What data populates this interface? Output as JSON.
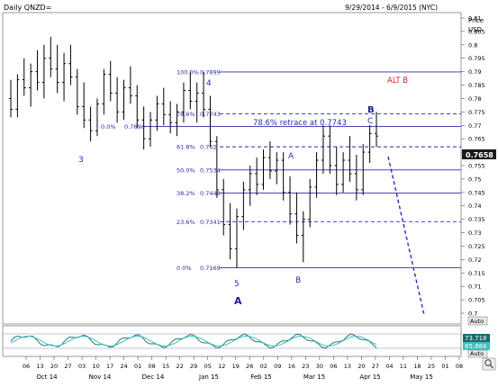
{
  "header": {
    "title": "Daily QNZD=",
    "range": "9/29/2014 - 6/9/2015 (NYC)"
  },
  "price_axis": {
    "title": "Price",
    "unit": "USD",
    "ticks": [
      "0.81",
      "0.805",
      "0.8",
      "0.795",
      "0.79",
      "0.785",
      "0.78",
      "0.775",
      "0.77",
      "0.765",
      "0.76",
      "0.755",
      "0.75",
      "0.745",
      "0.74",
      "0.735",
      "0.73",
      "0.725",
      "0.72",
      "0.715",
      "0.71",
      "0.705",
      "0.7"
    ],
    "last_price": "0.7658",
    "auto_label": "Auto"
  },
  "stochastic": {
    "value1": "73.718",
    "value2": "65.884",
    "auto_label": "Auto"
  },
  "date_axis": {
    "day_ticks": [
      "06",
      "13",
      "20",
      "27",
      "03",
      "10",
      "17",
      "24",
      "01",
      "08",
      "15",
      "22",
      "29",
      "05",
      "12",
      "19",
      "26",
      "02",
      "09",
      "16",
      "23",
      "30",
      "06",
      "13",
      "20",
      "27",
      "04",
      "11",
      "18",
      "25",
      "01",
      "08"
    ],
    "month_labels": [
      "Oct 14",
      "Nov 14",
      "Dec 14",
      "Jan 15",
      "Feb 15",
      "Mar 15",
      "Apr 15",
      "May 15"
    ]
  },
  "fib_levels": [
    {
      "pct": "100.0%",
      "price": "0.7899"
    },
    {
      "pct": "78.6%",
      "price": "0.7743"
    },
    {
      "pct": "61.8%",
      "price": "0.762"
    },
    {
      "pct": "50.0%",
      "price": "0.7534"
    },
    {
      "pct": "38.2%",
      "price": "0.7448"
    },
    {
      "pct": "23.6%",
      "price": "0.7341"
    },
    {
      "pct": "0.0%",
      "price": "0.7169"
    }
  ],
  "extra_level": {
    "pct": "0.0%",
    "price": "0.7696"
  },
  "annotations": {
    "retrace": "78.6% retrace at 0.7743",
    "alt_b": "ALT B",
    "wave_b_bold": "B",
    "wave_c": "C",
    "wave_a_small": "A",
    "wave_b_small": "B",
    "wave_4": "4",
    "wave_3": "3",
    "wave_5": "5",
    "wave_a_bold": "A"
  },
  "colors": {
    "candles": "#000000",
    "fib_lines": "#2b2bb5",
    "annotation_blue": "#2b2bb5",
    "alt_b_red": "#cc2222",
    "stoch_fast": "#2a7a7a",
    "stoch_slow": "#3fbfbf",
    "last_price_box": "#1a1a1a"
  },
  "chart_data": {
    "type": "ohlc",
    "title": "Daily QNZD=",
    "ylabel": "Price USD",
    "ylim": [
      0.7,
      0.812
    ],
    "x_unit": "trading day index (0 = 29 Sep 2014)",
    "bars": [
      {
        "x": 0,
        "o": 0.78,
        "h": 0.787,
        "l": 0.773,
        "c": 0.776
      },
      {
        "x": 2,
        "o": 0.776,
        "h": 0.789,
        "l": 0.773,
        "c": 0.787
      },
      {
        "x": 4,
        "o": 0.787,
        "h": 0.795,
        "l": 0.781,
        "c": 0.784
      },
      {
        "x": 6,
        "o": 0.784,
        "h": 0.793,
        "l": 0.777,
        "c": 0.79
      },
      {
        "x": 8,
        "o": 0.79,
        "h": 0.798,
        "l": 0.783,
        "c": 0.786
      },
      {
        "x": 10,
        "o": 0.786,
        "h": 0.8,
        "l": 0.78,
        "c": 0.795
      },
      {
        "x": 12,
        "o": 0.795,
        "h": 0.803,
        "l": 0.788,
        "c": 0.791
      },
      {
        "x": 14,
        "o": 0.791,
        "h": 0.8,
        "l": 0.782,
        "c": 0.786
      },
      {
        "x": 16,
        "o": 0.786,
        "h": 0.797,
        "l": 0.779,
        "c": 0.793
      },
      {
        "x": 18,
        "o": 0.793,
        "h": 0.8,
        "l": 0.785,
        "c": 0.788
      },
      {
        "x": 20,
        "o": 0.788,
        "h": 0.791,
        "l": 0.774,
        "c": 0.777
      },
      {
        "x": 22,
        "o": 0.777,
        "h": 0.786,
        "l": 0.769,
        "c": 0.772
      },
      {
        "x": 24,
        "o": 0.772,
        "h": 0.777,
        "l": 0.764,
        "c": 0.768
      },
      {
        "x": 26,
        "o": 0.768,
        "h": 0.78,
        "l": 0.766,
        "c": 0.778
      },
      {
        "x": 28,
        "o": 0.778,
        "h": 0.791,
        "l": 0.774,
        "c": 0.789
      },
      {
        "x": 30,
        "o": 0.789,
        "h": 0.794,
        "l": 0.779,
        "c": 0.782
      },
      {
        "x": 32,
        "o": 0.782,
        "h": 0.788,
        "l": 0.771,
        "c": 0.775
      },
      {
        "x": 34,
        "o": 0.775,
        "h": 0.787,
        "l": 0.772,
        "c": 0.784
      },
      {
        "x": 36,
        "o": 0.784,
        "h": 0.792,
        "l": 0.778,
        "c": 0.781
      },
      {
        "x": 38,
        "o": 0.781,
        "h": 0.785,
        "l": 0.769,
        "c": 0.772
      },
      {
        "x": 40,
        "o": 0.772,
        "h": 0.777,
        "l": 0.761,
        "c": 0.765
      },
      {
        "x": 42,
        "o": 0.765,
        "h": 0.775,
        "l": 0.762,
        "c": 0.772
      },
      {
        "x": 44,
        "o": 0.772,
        "h": 0.781,
        "l": 0.768,
        "c": 0.778
      },
      {
        "x": 46,
        "o": 0.778,
        "h": 0.784,
        "l": 0.77,
        "c": 0.774
      },
      {
        "x": 48,
        "o": 0.774,
        "h": 0.779,
        "l": 0.767,
        "c": 0.771
      },
      {
        "x": 50,
        "o": 0.771,
        "h": 0.778,
        "l": 0.766,
        "c": 0.775
      },
      {
        "x": 52,
        "o": 0.775,
        "h": 0.786,
        "l": 0.771,
        "c": 0.783
      },
      {
        "x": 54,
        "o": 0.783,
        "h": 0.79,
        "l": 0.776,
        "c": 0.779
      },
      {
        "x": 56,
        "o": 0.779,
        "h": 0.786,
        "l": 0.771,
        "c": 0.782
      },
      {
        "x": 58,
        "o": 0.782,
        "h": 0.79,
        "l": 0.773,
        "c": 0.776
      },
      {
        "x": 60,
        "o": 0.776,
        "h": 0.781,
        "l": 0.762,
        "c": 0.764
      },
      {
        "x": 62,
        "o": 0.764,
        "h": 0.766,
        "l": 0.743,
        "c": 0.746
      },
      {
        "x": 64,
        "o": 0.746,
        "h": 0.75,
        "l": 0.729,
        "c": 0.733
      },
      {
        "x": 66,
        "o": 0.733,
        "h": 0.741,
        "l": 0.72,
        "c": 0.724
      },
      {
        "x": 68,
        "o": 0.724,
        "h": 0.739,
        "l": 0.717,
        "c": 0.736
      },
      {
        "x": 70,
        "o": 0.736,
        "h": 0.749,
        "l": 0.731,
        "c": 0.746
      },
      {
        "x": 72,
        "o": 0.746,
        "h": 0.755,
        "l": 0.74,
        "c": 0.752
      },
      {
        "x": 74,
        "o": 0.752,
        "h": 0.758,
        "l": 0.744,
        "c": 0.748
      },
      {
        "x": 76,
        "o": 0.748,
        "h": 0.761,
        "l": 0.746,
        "c": 0.758
      },
      {
        "x": 78,
        "o": 0.758,
        "h": 0.764,
        "l": 0.75,
        "c": 0.753
      },
      {
        "x": 80,
        "o": 0.753,
        "h": 0.76,
        "l": 0.748,
        "c": 0.757
      },
      {
        "x": 82,
        "o": 0.757,
        "h": 0.76,
        "l": 0.742,
        "c": 0.745
      },
      {
        "x": 84,
        "o": 0.745,
        "h": 0.751,
        "l": 0.733,
        "c": 0.737
      },
      {
        "x": 86,
        "o": 0.737,
        "h": 0.745,
        "l": 0.726,
        "c": 0.729
      },
      {
        "x": 88,
        "o": 0.729,
        "h": 0.738,
        "l": 0.719,
        "c": 0.735
      },
      {
        "x": 90,
        "o": 0.735,
        "h": 0.75,
        "l": 0.732,
        "c": 0.747
      },
      {
        "x": 92,
        "o": 0.747,
        "h": 0.76,
        "l": 0.743,
        "c": 0.757
      },
      {
        "x": 94,
        "o": 0.757,
        "h": 0.77,
        "l": 0.752,
        "c": 0.766
      },
      {
        "x": 96,
        "o": 0.766,
        "h": 0.77,
        "l": 0.752,
        "c": 0.755
      },
      {
        "x": 98,
        "o": 0.755,
        "h": 0.762,
        "l": 0.744,
        "c": 0.748
      },
      {
        "x": 100,
        "o": 0.748,
        "h": 0.76,
        "l": 0.745,
        "c": 0.757
      },
      {
        "x": 102,
        "o": 0.757,
        "h": 0.766,
        "l": 0.749,
        "c": 0.752
      },
      {
        "x": 104,
        "o": 0.752,
        "h": 0.759,
        "l": 0.742,
        "c": 0.746
      },
      {
        "x": 106,
        "o": 0.746,
        "h": 0.763,
        "l": 0.744,
        "c": 0.76
      },
      {
        "x": 108,
        "o": 0.76,
        "h": 0.77,
        "l": 0.756,
        "c": 0.767
      },
      {
        "x": 110,
        "o": 0.767,
        "h": 0.775,
        "l": 0.762,
        "c": 0.766
      }
    ]
  }
}
